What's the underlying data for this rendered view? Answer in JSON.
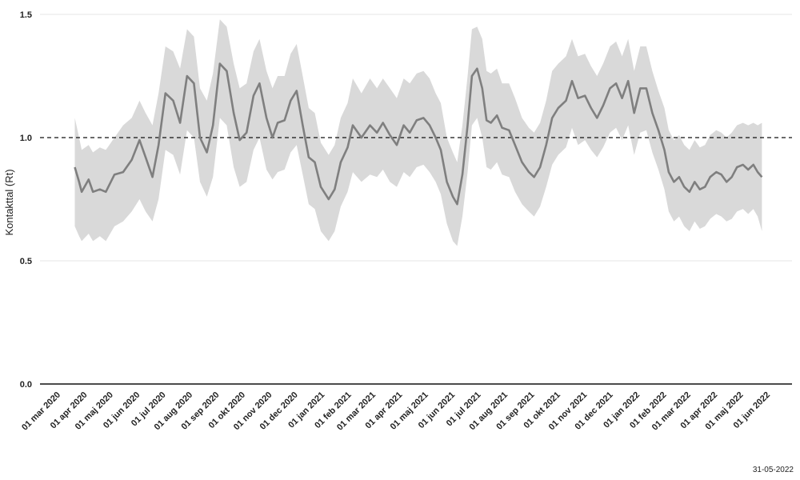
{
  "chart_data": {
    "type": "line",
    "title": "",
    "ylabel": "Kontakttal (Rt)",
    "xlabel": "",
    "ylim": [
      0,
      1.5
    ],
    "xlim": [
      "2020-03-01",
      "2022-06-01"
    ],
    "y_ticks": [
      0.0,
      0.5,
      1.0,
      1.5
    ],
    "y_tick_labels": [
      "0.0",
      "0.5",
      "1.0",
      "1.5"
    ],
    "x_ticks": [
      "2020-03-01",
      "2020-04-01",
      "2020-05-01",
      "2020-06-01",
      "2020-07-01",
      "2020-08-01",
      "2020-09-01",
      "2020-10-01",
      "2020-11-01",
      "2020-12-01",
      "2021-01-01",
      "2021-02-01",
      "2021-03-01",
      "2021-04-01",
      "2021-05-01",
      "2021-06-01",
      "2021-07-01",
      "2021-08-01",
      "2021-09-01",
      "2021-10-01",
      "2021-11-01",
      "2021-12-01",
      "2022-01-01",
      "2022-02-01",
      "2022-03-01",
      "2022-04-01",
      "2022-05-01",
      "2022-06-01"
    ],
    "x_tick_labels": [
      "01 mar 2020",
      "01 apr 2020",
      "01 maj 2020",
      "01 jun 2020",
      "01 jul 2020",
      "01 aug 2020",
      "01 sep 2020",
      "01 okt 2020",
      "01 nov 2020",
      "01 dec 2020",
      "01 jan 2021",
      "01 feb 2021",
      "01 mar 2021",
      "01 apr 2021",
      "01 maj 2021",
      "01 jun 2021",
      "01 jul 2021",
      "01 aug 2021",
      "01 sep 2021",
      "01 okt 2021",
      "01 nov 2021",
      "01 dec 2021",
      "01 jan 2022",
      "01 feb 2022",
      "01 mar 2022",
      "01 apr 2022",
      "01 maj 2022",
      "01 jun 2022"
    ],
    "reference_line": 1.0,
    "grid": "horizontal",
    "series": [
      {
        "color": "#7f7f7f",
        "band_color": "#d9d9d9",
        "points": [
          [
            "2020-03-20",
            0.88,
            0.64,
            1.08
          ],
          [
            "2020-03-25",
            0.82,
            0.6,
            1.0
          ],
          [
            "2020-03-28",
            0.78,
            0.58,
            0.95
          ],
          [
            "2020-04-05",
            0.83,
            0.61,
            0.97
          ],
          [
            "2020-04-10",
            0.78,
            0.58,
            0.94
          ],
          [
            "2020-04-18",
            0.79,
            0.6,
            0.96
          ],
          [
            "2020-04-25",
            0.78,
            0.58,
            0.95
          ],
          [
            "2020-05-05",
            0.85,
            0.64,
            1.0
          ],
          [
            "2020-05-15",
            0.86,
            0.66,
            1.05
          ],
          [
            "2020-05-25",
            0.91,
            0.7,
            1.08
          ],
          [
            "2020-06-03",
            0.99,
            0.75,
            1.15
          ],
          [
            "2020-06-10",
            0.92,
            0.7,
            1.1
          ],
          [
            "2020-06-18",
            0.84,
            0.66,
            1.05
          ],
          [
            "2020-06-25",
            0.97,
            0.75,
            1.18
          ],
          [
            "2020-07-03",
            1.18,
            0.95,
            1.37
          ],
          [
            "2020-07-12",
            1.15,
            0.93,
            1.35
          ],
          [
            "2020-07-20",
            1.06,
            0.85,
            1.28
          ],
          [
            "2020-07-28",
            1.25,
            1.03,
            1.44
          ],
          [
            "2020-08-05",
            1.22,
            1.0,
            1.41
          ],
          [
            "2020-08-12",
            1.0,
            0.82,
            1.2
          ],
          [
            "2020-08-20",
            0.94,
            0.76,
            1.15
          ],
          [
            "2020-08-27",
            1.05,
            0.84,
            1.26
          ],
          [
            "2020-09-04",
            1.3,
            1.08,
            1.48
          ],
          [
            "2020-09-12",
            1.27,
            1.05,
            1.45
          ],
          [
            "2020-09-20",
            1.1,
            0.88,
            1.3
          ],
          [
            "2020-09-27",
            0.99,
            0.8,
            1.2
          ],
          [
            "2020-10-05",
            1.02,
            0.82,
            1.22
          ],
          [
            "2020-10-13",
            1.17,
            0.95,
            1.35
          ],
          [
            "2020-10-20",
            1.22,
            1.0,
            1.4
          ],
          [
            "2020-10-28",
            1.08,
            0.87,
            1.27
          ],
          [
            "2020-11-04",
            1.0,
            0.83,
            1.2
          ],
          [
            "2020-11-10",
            1.06,
            0.86,
            1.25
          ],
          [
            "2020-11-18",
            1.07,
            0.87,
            1.25
          ],
          [
            "2020-11-25",
            1.15,
            0.94,
            1.34
          ],
          [
            "2020-12-02",
            1.19,
            0.97,
            1.38
          ],
          [
            "2020-12-09",
            1.05,
            0.85,
            1.25
          ],
          [
            "2020-12-16",
            0.92,
            0.73,
            1.12
          ],
          [
            "2020-12-23",
            0.9,
            0.71,
            1.1
          ],
          [
            "2020-12-30",
            0.8,
            0.62,
            0.98
          ],
          [
            "2021-01-08",
            0.75,
            0.58,
            0.93
          ],
          [
            "2021-01-15",
            0.79,
            0.62,
            0.97
          ],
          [
            "2021-01-22",
            0.9,
            0.72,
            1.08
          ],
          [
            "2021-01-30",
            0.96,
            0.78,
            1.14
          ],
          [
            "2021-02-05",
            1.05,
            0.86,
            1.24
          ],
          [
            "2021-02-15",
            1.0,
            0.82,
            1.18
          ],
          [
            "2021-02-25",
            1.05,
            0.85,
            1.24
          ],
          [
            "2021-03-05",
            1.02,
            0.84,
            1.2
          ],
          [
            "2021-03-12",
            1.06,
            0.87,
            1.24
          ],
          [
            "2021-03-20",
            1.01,
            0.82,
            1.2
          ],
          [
            "2021-03-28",
            0.97,
            0.8,
            1.16
          ],
          [
            "2021-04-05",
            1.05,
            0.86,
            1.24
          ],
          [
            "2021-04-12",
            1.02,
            0.84,
            1.22
          ],
          [
            "2021-04-20",
            1.07,
            0.88,
            1.26
          ],
          [
            "2021-04-28",
            1.08,
            0.89,
            1.27
          ],
          [
            "2021-05-05",
            1.05,
            0.86,
            1.24
          ],
          [
            "2021-05-12",
            1.0,
            0.82,
            1.18
          ],
          [
            "2021-05-18",
            0.95,
            0.77,
            1.14
          ],
          [
            "2021-05-25",
            0.82,
            0.65,
            1.0
          ],
          [
            "2021-06-01",
            0.76,
            0.58,
            0.94
          ],
          [
            "2021-06-06",
            0.73,
            0.56,
            0.9
          ],
          [
            "2021-06-12",
            0.85,
            0.68,
            1.05
          ],
          [
            "2021-06-18",
            1.05,
            0.86,
            1.25
          ],
          [
            "2021-06-23",
            1.25,
            1.05,
            1.44
          ],
          [
            "2021-06-29",
            1.28,
            1.08,
            1.45
          ],
          [
            "2021-07-05",
            1.2,
            1.0,
            1.4
          ],
          [
            "2021-07-10",
            1.07,
            0.88,
            1.27
          ],
          [
            "2021-07-15",
            1.06,
            0.87,
            1.26
          ],
          [
            "2021-07-22",
            1.09,
            0.9,
            1.28
          ],
          [
            "2021-07-28",
            1.04,
            0.85,
            1.22
          ],
          [
            "2021-08-05",
            1.03,
            0.84,
            1.22
          ],
          [
            "2021-08-12",
            0.97,
            0.78,
            1.16
          ],
          [
            "2021-08-20",
            0.9,
            0.73,
            1.08
          ],
          [
            "2021-08-28",
            0.86,
            0.7,
            1.04
          ],
          [
            "2021-09-03",
            0.84,
            0.68,
            1.02
          ],
          [
            "2021-09-10",
            0.88,
            0.72,
            1.06
          ],
          [
            "2021-09-17",
            0.97,
            0.8,
            1.15
          ],
          [
            "2021-09-24",
            1.08,
            0.89,
            1.27
          ],
          [
            "2021-10-01",
            1.12,
            0.93,
            1.3
          ],
          [
            "2021-10-10",
            1.15,
            0.96,
            1.33
          ],
          [
            "2021-10-17",
            1.23,
            1.04,
            1.4
          ],
          [
            "2021-10-24",
            1.16,
            0.97,
            1.33
          ],
          [
            "2021-11-01",
            1.17,
            0.99,
            1.34
          ],
          [
            "2021-11-08",
            1.12,
            0.95,
            1.29
          ],
          [
            "2021-11-15",
            1.08,
            0.92,
            1.25
          ],
          [
            "2021-11-22",
            1.13,
            0.96,
            1.3
          ],
          [
            "2021-11-30",
            1.2,
            1.02,
            1.37
          ],
          [
            "2021-12-07",
            1.22,
            1.04,
            1.39
          ],
          [
            "2021-12-14",
            1.16,
            0.99,
            1.33
          ],
          [
            "2021-12-21",
            1.23,
            1.05,
            1.4
          ],
          [
            "2021-12-28",
            1.1,
            0.93,
            1.27
          ],
          [
            "2022-01-04",
            1.2,
            1.02,
            1.37
          ],
          [
            "2022-01-11",
            1.2,
            1.03,
            1.37
          ],
          [
            "2022-01-18",
            1.1,
            0.94,
            1.27
          ],
          [
            "2022-01-25",
            1.03,
            0.87,
            1.19
          ],
          [
            "2022-02-01",
            0.95,
            0.79,
            1.12
          ],
          [
            "2022-02-06",
            0.86,
            0.7,
            1.03
          ],
          [
            "2022-02-12",
            0.82,
            0.66,
            0.99
          ],
          [
            "2022-02-18",
            0.84,
            0.68,
            1.01
          ],
          [
            "2022-02-24",
            0.8,
            0.64,
            0.97
          ],
          [
            "2022-03-02",
            0.78,
            0.62,
            0.95
          ],
          [
            "2022-03-08",
            0.82,
            0.66,
            0.99
          ],
          [
            "2022-03-14",
            0.79,
            0.63,
            0.96
          ],
          [
            "2022-03-20",
            0.8,
            0.64,
            0.97
          ],
          [
            "2022-03-26",
            0.84,
            0.67,
            1.01
          ],
          [
            "2022-04-02",
            0.86,
            0.69,
            1.03
          ],
          [
            "2022-04-08",
            0.85,
            0.68,
            1.02
          ],
          [
            "2022-04-14",
            0.82,
            0.66,
            1.0
          ],
          [
            "2022-04-20",
            0.84,
            0.67,
            1.02
          ],
          [
            "2022-04-26",
            0.88,
            0.7,
            1.05
          ],
          [
            "2022-05-03",
            0.89,
            0.71,
            1.06
          ],
          [
            "2022-05-09",
            0.87,
            0.69,
            1.05
          ],
          [
            "2022-05-15",
            0.89,
            0.71,
            1.06
          ],
          [
            "2022-05-20",
            0.86,
            0.68,
            1.05
          ],
          [
            "2022-05-25",
            0.84,
            0.62,
            1.06
          ]
        ]
      }
    ]
  },
  "footer": {
    "date_stamp": "31-05-2022"
  }
}
